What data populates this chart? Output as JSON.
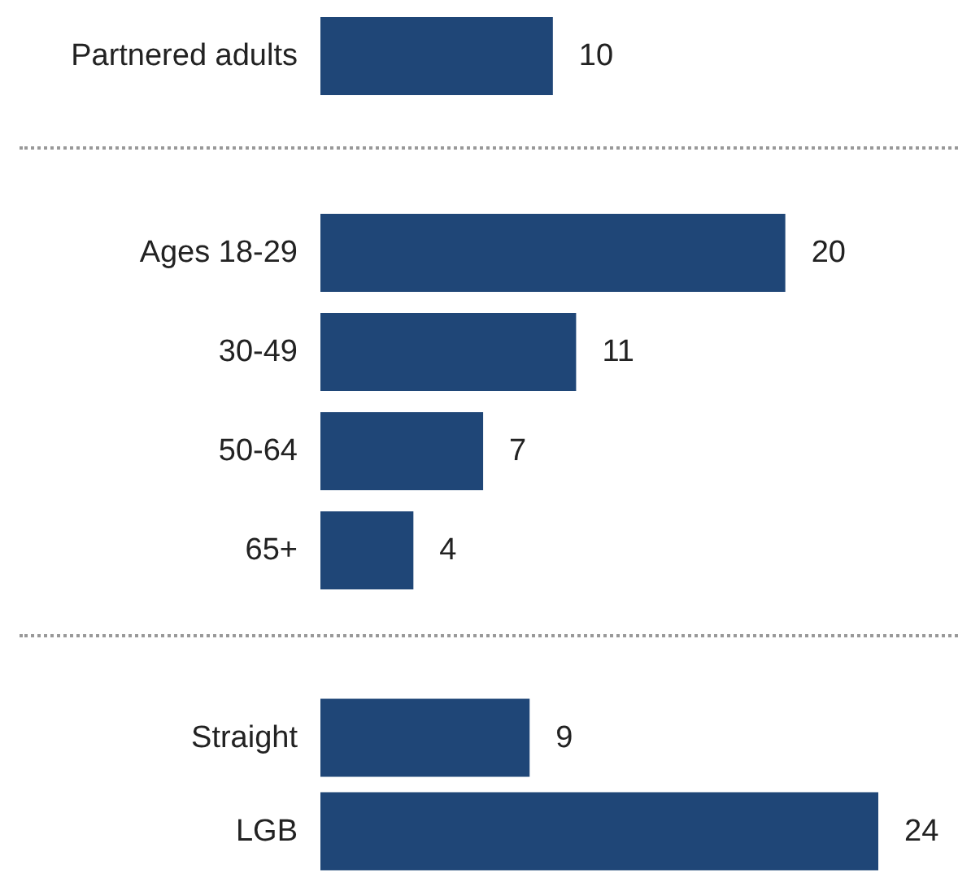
{
  "chart_data": [
    {
      "type": "bar",
      "orientation": "horizontal",
      "categories": [
        "Partnered adults"
      ],
      "values": [
        10
      ],
      "color": "#1f4677",
      "data_labels": true
    },
    {
      "type": "bar",
      "orientation": "horizontal",
      "categories": [
        "Ages 18-29",
        "30-49",
        "50-64",
        "65+"
      ],
      "values": [
        20,
        11,
        7,
        4
      ],
      "color": "#1f4677",
      "data_labels": true
    },
    {
      "type": "bar",
      "orientation": "horizontal",
      "categories": [
        "Straight",
        "LGB"
      ],
      "values": [
        9,
        24
      ],
      "color": "#1f4677",
      "data_labels": true
    }
  ]
}
